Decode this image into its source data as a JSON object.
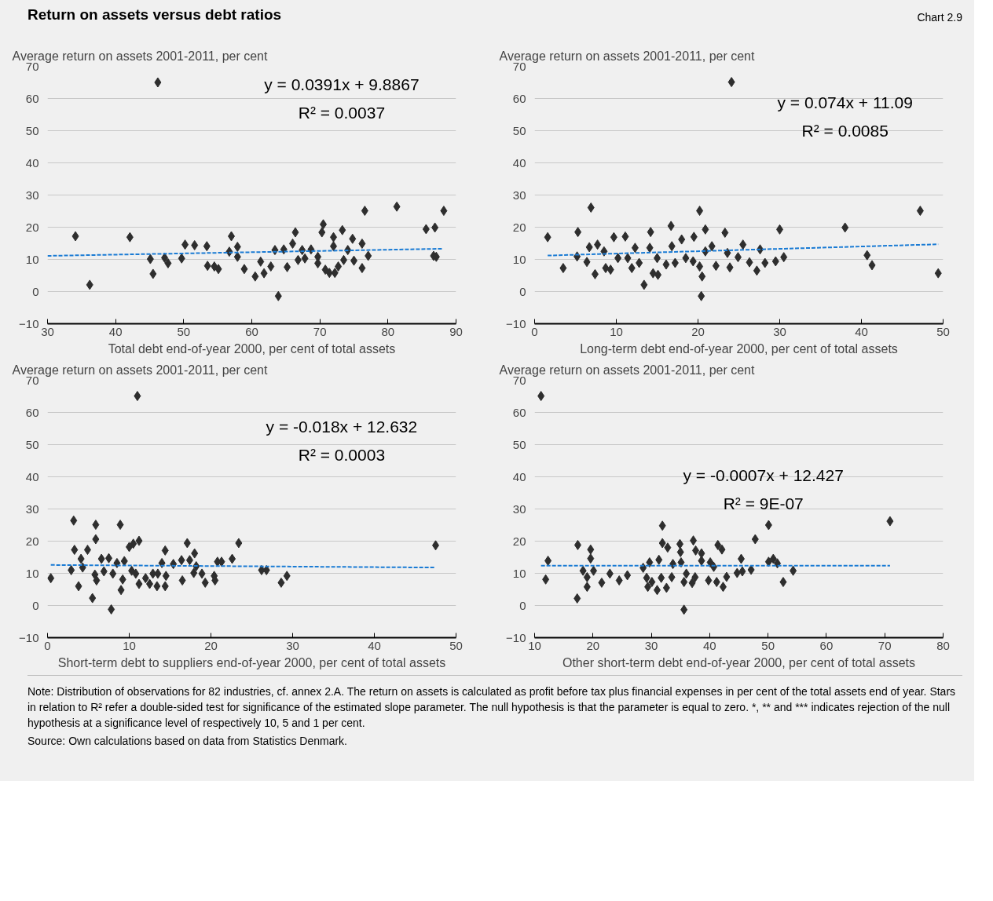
{
  "chart_data": [
    {
      "type": "other",
      "title": "Return on assets versus debt ratios",
      "annotations": [
        "Chart 2.9"
      ]
    },
    {
      "type": "scatter",
      "ylabel": "Average return on assets 2001-2011, per cent",
      "xlabel": "Total debt end-of-year 2000, per cent of total assets",
      "xlim": [
        30,
        90
      ],
      "xticks": [
        30,
        40,
        50,
        60,
        70,
        80,
        90
      ],
      "ylim": [
        -10,
        70
      ],
      "yticks": [
        -10,
        0,
        10,
        20,
        30,
        40,
        50,
        60,
        70
      ],
      "grid": "y",
      "annotations": [
        "y = 0.0391x + 9.8867",
        "R² = 0.0037"
      ],
      "series": [
        {
          "type": "scatter",
          "marker": "diamond",
          "color": "#2e2e2e",
          "x": [
            46.2,
            34.1,
            36.2,
            42.1,
            45.1,
            45.5,
            47.2,
            47.7,
            49.7,
            50.2,
            51.6,
            53.4,
            53.5,
            54.5,
            55.1,
            57.0,
            56.7,
            57.9,
            57.9,
            58.9,
            60.5,
            61.3,
            61.8,
            62.8,
            63.4,
            63.9,
            64.7,
            65.2,
            66.0,
            66.4,
            66.8,
            67.4,
            67.8,
            68.7,
            69.7,
            69.7,
            70.3,
            70.5,
            70.8,
            71.4,
            72.0,
            72.0,
            72.2,
            72.7,
            73.3,
            73.5,
            74.1,
            74.8,
            75.0,
            76.2,
            76.2,
            76.6,
            77.1,
            81.3,
            85.6,
            86.9,
            86.7,
            87.1,
            88.2
          ],
          "values": [
            65,
            17.2,
            2.1,
            16.9,
            10.1,
            5.5,
            10.5,
            8.8,
            10.3,
            14.6,
            14.4,
            14.1,
            8.0,
            7.8,
            7.0,
            17.2,
            12.4,
            13.9,
            10.8,
            7.0,
            4.7,
            9.3,
            5.7,
            7.8,
            12.9,
            -1.4,
            13.1,
            7.6,
            14.9,
            18.4,
            9.8,
            12.9,
            10.3,
            13.1,
            10.8,
            8.8,
            18.4,
            20.9,
            6.8,
            5.8,
            16.9,
            14.1,
            5.8,
            7.8,
            19.1,
            9.8,
            12.9,
            16.4,
            9.6,
            14.9,
            7.3,
            25.1,
            11.1,
            26.4,
            19.4,
            19.9,
            11.1,
            10.8,
            25.1
          ]
        },
        {
          "type": "line",
          "line_style": "dashed",
          "color": "#1a7bd4",
          "x": [
            30,
            88
          ],
          "values": [
            11.1,
            13.3
          ]
        }
      ]
    },
    {
      "type": "scatter",
      "ylabel": "Average return on assets 2001-2011, per cent",
      "xlabel": "Long-term debt end-of-year 2000, per cent of total assets",
      "xlim": [
        0,
        50
      ],
      "xticks": [
        0,
        10,
        20,
        30,
        40,
        50
      ],
      "ylim": [
        -10,
        70
      ],
      "yticks": [
        -10,
        0,
        10,
        20,
        30,
        40,
        50,
        60,
        70
      ],
      "grid": "y",
      "annotations": [
        "y = 0.074x + 11.09",
        "R² = 0.0085"
      ],
      "series": [
        {
          "type": "scatter",
          "marker": "diamond",
          "color": "#2e2e2e",
          "x": [
            24.1,
            1.6,
            3.5,
            5.3,
            5.2,
            6.9,
            6.4,
            6.7,
            7.4,
            7.7,
            8.5,
            8.7,
            9.3,
            9.7,
            10.2,
            11.1,
            11.4,
            11.9,
            12.3,
            12.8,
            13.4,
            14.2,
            14.1,
            14.5,
            15.0,
            15.1,
            16.1,
            16.7,
            16.8,
            17.2,
            18.0,
            18.5,
            19.5,
            19.4,
            20.2,
            20.4,
            20.5,
            20.2,
            20.9,
            20.9,
            21.7,
            22.2,
            23.3,
            23.6,
            23.9,
            24.9,
            25.5,
            26.3,
            27.2,
            27.6,
            28.2,
            29.5,
            30.0,
            30.5,
            38.0,
            40.7,
            41.3,
            47.2,
            49.4
          ],
          "values": [
            65.1,
            16.9,
            7.3,
            18.5,
            10.9,
            26.1,
            9.2,
            13.8,
            5.4,
            14.6,
            12.5,
            7.3,
            6.8,
            16.9,
            10.4,
            17.1,
            10.4,
            7.3,
            13.6,
            8.9,
            2.1,
            18.5,
            13.6,
            5.7,
            10.4,
            5.2,
            8.4,
            20.4,
            14.1,
            8.9,
            16.2,
            10.4,
            17.0,
            9.4,
            25.1,
            -1.4,
            4.7,
            7.8,
            19.3,
            12.5,
            14.1,
            8.0,
            18.3,
            12.0,
            7.5,
            10.7,
            14.6,
            9.1,
            6.5,
            13.1,
            8.9,
            9.4,
            19.3,
            10.7,
            19.9,
            11.3,
            8.2,
            25.1,
            5.7
          ]
        },
        {
          "type": "line",
          "line_style": "dashed",
          "color": "#1a7bd4",
          "x": [
            1.6,
            49.4
          ],
          "values": [
            11.2,
            14.7
          ]
        }
      ]
    },
    {
      "type": "scatter",
      "ylabel": "Average return on assets 2001-2011, per cent",
      "xlabel": "Short-term debt to suppliers end-of-year 2000, per cent of total assets",
      "xlim": [
        0,
        50
      ],
      "xticks": [
        0,
        10,
        20,
        30,
        40,
        50
      ],
      "ylim": [
        -10,
        70
      ],
      "yticks": [
        -10,
        0,
        10,
        20,
        30,
        40,
        50,
        60,
        70
      ],
      "grid": "y",
      "annotations": [
        "y = -0.018x + 12.632",
        "R² = 0.0003"
      ],
      "series": [
        {
          "type": "scatter",
          "marker": "diamond",
          "color": "#2e2e2e",
          "x": [
            11.0,
            0.4,
            3.2,
            3.3,
            2.9,
            3.8,
            4.1,
            4.3,
            4.9,
            5.5,
            5.9,
            5.9,
            5.8,
            6.0,
            6.6,
            6.9,
            7.5,
            7.8,
            8.0,
            8.5,
            8.9,
            9.0,
            9.2,
            9.4,
            10.0,
            10.5,
            11.2,
            10.3,
            10.8,
            11.2,
            12.0,
            12.5,
            12.9,
            13.4,
            13.5,
            14.0,
            14.4,
            14.4,
            14.5,
            15.4,
            16.4,
            16.5,
            17.1,
            17.4,
            18.0,
            18.2,
            17.9,
            18.9,
            19.3,
            20.4,
            20.5,
            20.8,
            21.3,
            22.6,
            23.4,
            26.2,
            26.8,
            28.6,
            29.3,
            47.5
          ],
          "values": [
            65.1,
            8.5,
            26.4,
            17.3,
            11.0,
            6.0,
            14.5,
            11.8,
            17.3,
            2.3,
            25.1,
            20.6,
            9.6,
            7.8,
            14.5,
            10.6,
            14.7,
            -1.2,
            9.9,
            13.2,
            25.1,
            4.8,
            8.1,
            13.8,
            18.2,
            19.2,
            20.1,
            10.8,
            9.9,
            6.7,
            8.5,
            6.7,
            9.9,
            6.0,
            9.9,
            13.2,
            17.1,
            6.0,
            9.2,
            12.9,
            14.1,
            7.8,
            19.4,
            14.1,
            16.2,
            12.2,
            10.1,
            9.9,
            7.1,
            9.2,
            7.8,
            13.6,
            13.6,
            14.5,
            19.4,
            11.0,
            11.0,
            7.1,
            9.2,
            18.7
          ]
        },
        {
          "type": "line",
          "line_style": "dashed",
          "color": "#1a7bd4",
          "x": [
            0.4,
            47.5
          ],
          "values": [
            12.6,
            11.8
          ]
        }
      ]
    },
    {
      "type": "scatter",
      "ylabel": "Average return on assets 2001-2011, per cent",
      "xlabel": "Other short-term debt end-of-year 2000, per cent of total assets",
      "xlim": [
        10,
        80
      ],
      "xticks": [
        10,
        20,
        30,
        40,
        50,
        60,
        70,
        80
      ],
      "ylim": [
        -10,
        70
      ],
      "yticks": [
        -10,
        0,
        10,
        20,
        30,
        40,
        50,
        60,
        70
      ],
      "grid": "y",
      "annotations": [
        "y = -0.0007x + 12.427",
        "R² = 9E-07"
      ],
      "series": [
        {
          "type": "scatter",
          "marker": "diamond",
          "color": "#2e2e2e",
          "x": [
            11.1,
            12.3,
            11.9,
            17.3,
            17.4,
            18.3,
            19.0,
            19.0,
            19.6,
            19.6,
            20.1,
            21.5,
            22.9,
            24.5,
            25.9,
            28.6,
            29.2,
            29.4,
            29.7,
            30.1,
            31.0,
            31.3,
            31.7,
            31.9,
            31.9,
            32.8,
            32.6,
            33.5,
            33.7,
            34.9,
            35.0,
            35.1,
            35.6,
            35.6,
            36.0,
            37.0,
            37.2,
            37.5,
            37.6,
            38.6,
            38.6,
            39.8,
            40.1,
            40.7,
            41.2,
            41.4,
            42.1,
            42.3,
            42.9,
            44.7,
            45.4,
            45.6,
            47.1,
            47.8,
            50.1,
            50.1,
            50.9,
            51.6,
            52.6,
            54.3,
            70.9
          ],
          "values": [
            65.1,
            13.9,
            8.1,
            2.2,
            18.8,
            10.8,
            8.8,
            5.8,
            17.4,
            14.6,
            10.8,
            7.1,
            9.9,
            7.8,
            9.4,
            11.7,
            8.6,
            5.8,
            13.4,
            7.3,
            4.8,
            14.2,
            8.6,
            24.8,
            19.4,
            18.0,
            5.5,
            8.8,
            12.9,
            19.1,
            16.6,
            13.4,
            -1.3,
            7.3,
            9.9,
            7.0,
            20.2,
            8.8,
            17.1,
            16.2,
            13.9,
            7.8,
            13.4,
            12.0,
            7.3,
            18.8,
            17.4,
            5.8,
            8.9,
            10.1,
            14.5,
            10.6,
            11.1,
            20.6,
            13.6,
            25.0,
            14.5,
            13.1,
            7.3,
            10.8,
            26.2
          ]
        },
        {
          "type": "line",
          "line_style": "dashed",
          "color": "#1a7bd4",
          "x": [
            11.1,
            70.9
          ],
          "values": [
            12.4,
            12.4
          ]
        }
      ]
    },
    {
      "type": "other",
      "annotations": [
        "Note: Distribution of observations for 82 industries, cf. annex 2.A. The return on assets is calculated as profit before tax plus financial expenses in per cent of the total assets end of year. Stars in relation to R² refer a double-sided test for significance of the estimated slope parameter. The null hypothesis is that the parameter is equal to zero. *, ** and *** indicates rejection of the null hypothesis at a significance level of respectively 10, 5 and 1 per cent.",
        "Source: Own calculations based on data from Statistics Denmark."
      ]
    }
  ]
}
